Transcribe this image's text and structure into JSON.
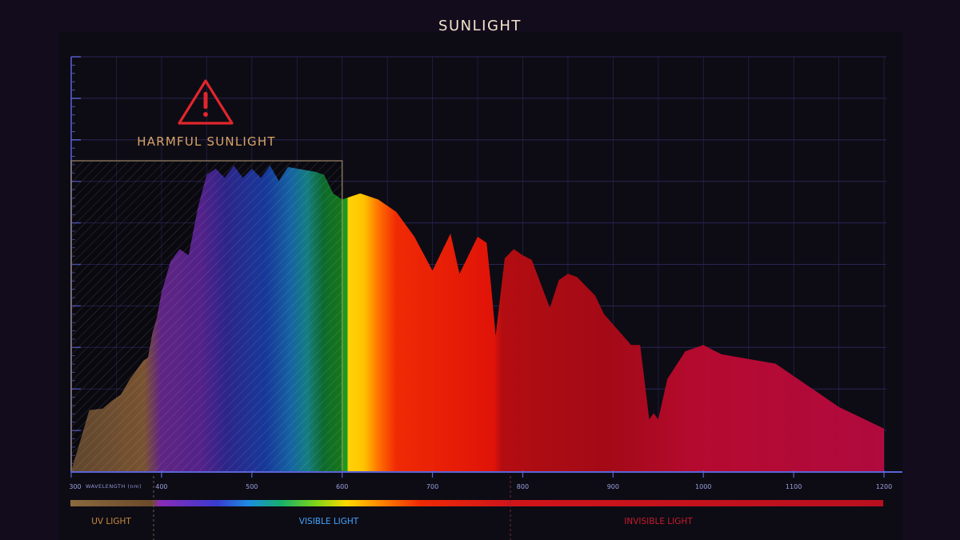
{
  "title": "SUNLIGHT",
  "callout": {
    "label": "HARMFUL SUNLIGHT",
    "icon": "warning-triangle-icon",
    "range": [
      300,
      600
    ]
  },
  "axis": {
    "unit_label": "WAVELENGTH (nm)"
  },
  "bands": [
    {
      "label": "UV LIGHT",
      "color": "#c8893f"
    },
    {
      "label": "VISIBLE LIGHT",
      "color": "#44a3ff"
    },
    {
      "label": "INVISIBLE LIGHT",
      "color": "#c81b2d"
    }
  ],
  "colors": {
    "background": "#120c1c",
    "panel": "#0d0c14",
    "grid": "#2a2456",
    "axis": "#5b63d6",
    "title": "#f3e3cc",
    "callout": "#d9a466",
    "warning": "#e0262c"
  },
  "chart_data": {
    "type": "area",
    "title": "SUNLIGHT",
    "xlabel": "WAVELENGTH (nm)",
    "ylabel": "",
    "xlim": [
      300,
      1200
    ],
    "ylim": [
      0,
      10
    ],
    "grid": true,
    "xticks": [
      300,
      400,
      500,
      600,
      700,
      800,
      900,
      1000,
      1100,
      1200
    ],
    "series": [
      {
        "x": [
          300,
          310,
          320,
          335,
          345,
          355,
          365,
          375,
          380,
          385,
          390,
          395,
          400,
          410,
          420,
          430,
          440,
          450,
          460,
          470,
          480,
          490,
          500,
          510,
          520,
          530,
          540,
          550,
          560,
          570,
          580,
          590,
          600,
          620,
          640,
          660,
          680,
          700,
          720,
          730,
          750,
          760,
          765,
          770,
          780,
          790,
          800,
          810,
          830,
          840,
          850,
          860,
          880,
          890,
          920,
          930,
          940,
          945,
          950,
          960,
          980,
          1000,
          1020,
          1080,
          1150,
          1200
        ],
        "values": [
          0.05,
          1.0,
          2.0,
          2.05,
          2.3,
          2.5,
          3.0,
          3.4,
          3.6,
          3.7,
          4.5,
          5.0,
          5.8,
          6.8,
          7.2,
          7.0,
          8.5,
          9.6,
          9.8,
          9.5,
          9.9,
          9.5,
          9.8,
          9.5,
          9.9,
          9.4,
          9.85,
          9.8,
          9.75,
          9.7,
          9.6,
          9.0,
          8.8,
          9.0,
          8.8,
          8.4,
          7.6,
          6.5,
          7.7,
          6.4,
          7.6,
          7.4,
          6.0,
          4.4,
          6.9,
          7.2,
          7.0,
          6.85,
          5.3,
          6.2,
          6.4,
          6.3,
          5.7,
          5.1,
          4.1,
          4.1,
          1.7,
          1.9,
          1.7,
          3.0,
          3.9,
          4.1,
          3.8,
          3.5,
          2.1,
          1.4
        ]
      }
    ]
  }
}
